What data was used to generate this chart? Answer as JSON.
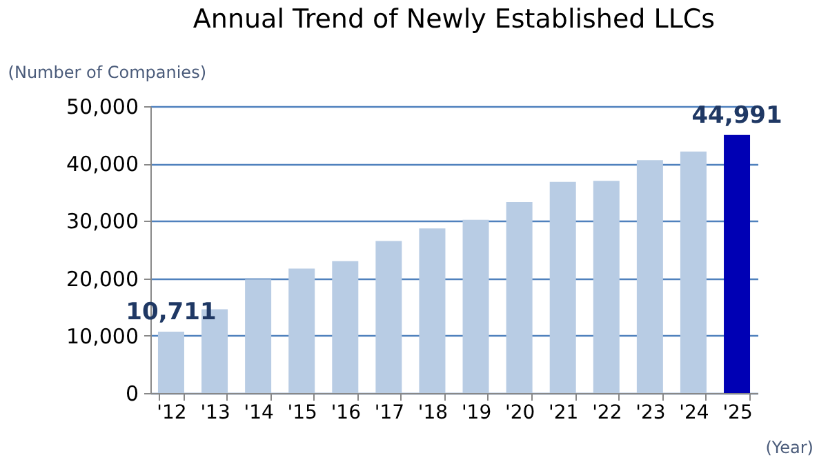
{
  "chart_data": {
    "type": "bar",
    "title": "Annual Trend of Newly Established LLCs",
    "ylabel": "(Number of Companies)",
    "xlabel": "(Year)",
    "categories": [
      "'12",
      "'13",
      "'14",
      "'15",
      "'16",
      "'17",
      "'18",
      "'19",
      "'20",
      "'21",
      "'22",
      "'23",
      "'24",
      "'25"
    ],
    "values": [
      10711,
      14600,
      19800,
      21700,
      23000,
      26500,
      28700,
      30200,
      33300,
      36800,
      37000,
      40600,
      42100,
      44991
    ],
    "colors": [
      "#b8cce4",
      "#b8cce4",
      "#b8cce4",
      "#b8cce4",
      "#b8cce4",
      "#b8cce4",
      "#b8cce4",
      "#b8cce4",
      "#b8cce4",
      "#b8cce4",
      "#b8cce4",
      "#b8cce4",
      "#b8cce4",
      "#0000b4"
    ],
    "value_labels": [
      "10,711",
      null,
      null,
      null,
      null,
      null,
      null,
      null,
      null,
      null,
      null,
      null,
      null,
      "44,991"
    ],
    "ylim": [
      0,
      50000
    ],
    "yticks": [
      0,
      {
        "value": 10000,
        "label": "10,000"
      },
      {
        "value": 20000,
        "label": "20,000"
      },
      {
        "value": 30000,
        "label": "30,000"
      },
      {
        "value": 40000,
        "label": "40,000"
      },
      {
        "value": 50000,
        "label": "50,000"
      }
    ],
    "grid": "y"
  }
}
